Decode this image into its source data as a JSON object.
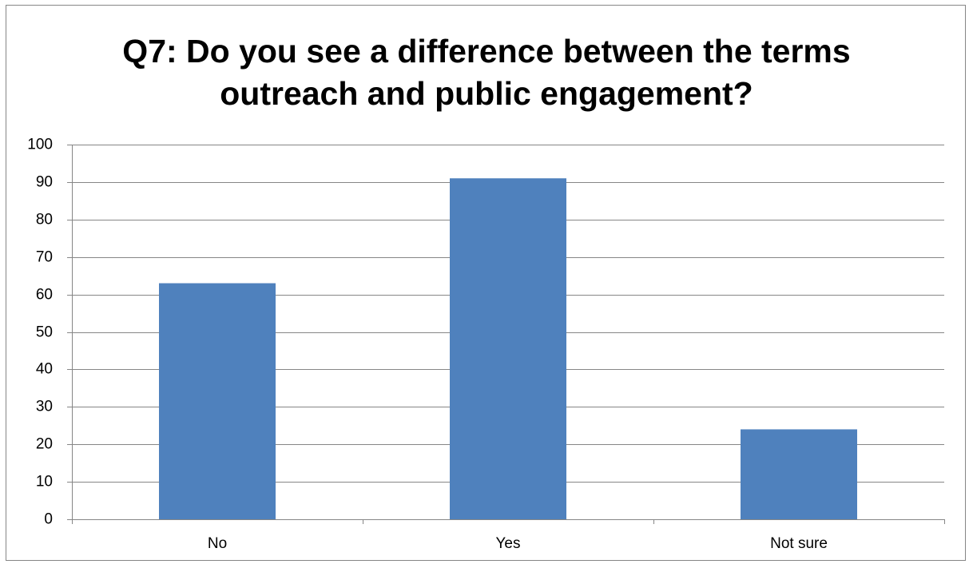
{
  "chart_data": {
    "type": "bar",
    "title": [
      "Q7: Do you see a difference between the terms",
      "outreach and public engagement?"
    ],
    "categories": [
      "No",
      "Yes",
      "Not sure"
    ],
    "values": [
      63,
      91,
      24
    ],
    "ylim": [
      0,
      100
    ],
    "yticks": [
      "0",
      "10",
      "20",
      "30",
      "40",
      "50",
      "60",
      "70",
      "80",
      "90",
      "100"
    ],
    "grid": true,
    "legend": "none",
    "bar_color": "#4F81BD",
    "grid_color": "#868686"
  }
}
